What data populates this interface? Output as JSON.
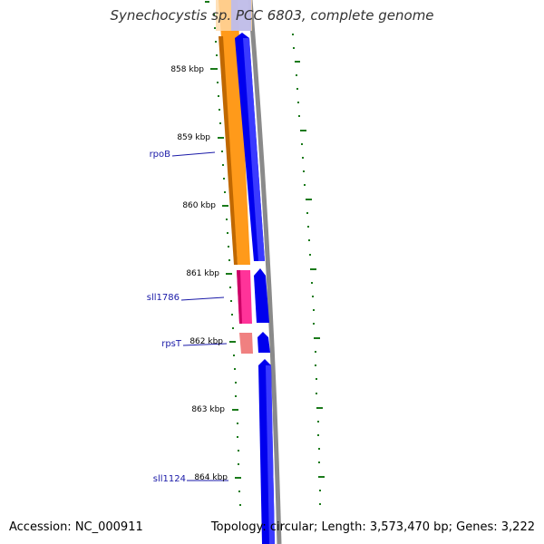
{
  "title": "Synechocystis sp. PCC 6803, complete genome",
  "footer": {
    "accession": "Accession: NC_000911",
    "summary": "Topology: circular; Length: 3,573,470 bp; Genes: 3,222"
  },
  "ticks": [
    "858 kbp",
    "859 kbp",
    "860 kbp",
    "861 kbp",
    "862 kbp",
    "863 kbp",
    "864 kbp"
  ],
  "genes": [
    "rpoB",
    "sll1786",
    "rpsT",
    "sll1124"
  ],
  "colors": {
    "orange_feature": "#ff9a1a",
    "pink_feature": "#ff3399",
    "salmon_feature": "#f08080",
    "blue_feature": "#0000ee",
    "backbone": "#8a8a8a",
    "tick_green": "#1a7a1a",
    "gene_label": "#1a1aa8"
  }
}
